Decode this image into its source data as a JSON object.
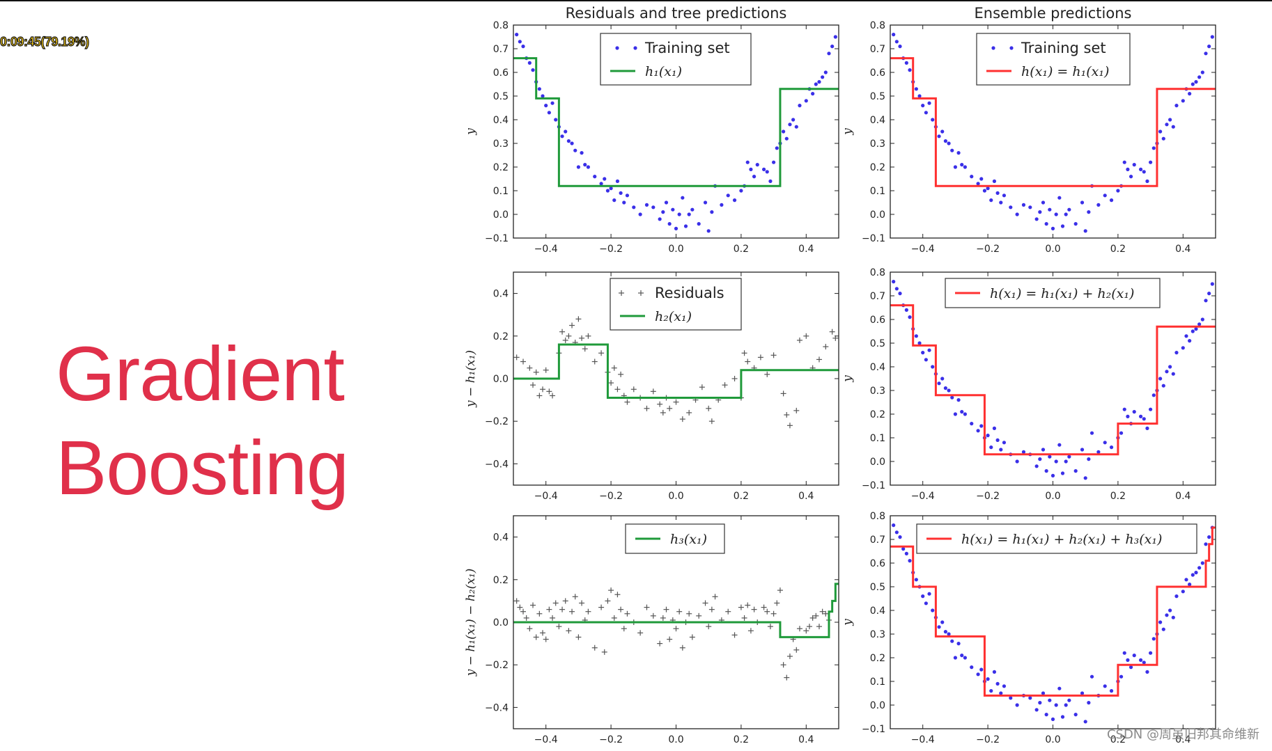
{
  "overlay": {
    "timer": "0:09:45(79.19%)"
  },
  "headline": {
    "line1": "Gradient",
    "line2": "Boosting"
  },
  "watermark": "CSDN @周虽旧邦其命维新",
  "colors": {
    "headline": "#e0304a",
    "points": "#3a2fe8",
    "residuals": "#555555",
    "tree": "#1f9a3a",
    "ensemble": "#ff3030"
  },
  "chart_data": [
    {
      "type": "scatter",
      "title": "Residuals and tree predictions",
      "ylabel": "y",
      "xlim": [
        -0.5,
        0.5
      ],
      "ylim": [
        -0.1,
        0.8
      ],
      "yticks": [
        "-0.1",
        "0.0",
        "0.1",
        "0.2",
        "0.3",
        "0.4",
        "0.5",
        "0.6",
        "0.7",
        "0.8"
      ],
      "xticks": [
        "-0.4",
        "-0.2",
        "0.0",
        "0.2",
        "0.4"
      ],
      "legend": {
        "placement": "top-center",
        "entries": [
          "Training set",
          "h₁(x₁)"
        ]
      },
      "points": "training_set",
      "step": {
        "name": "h₁(x₁)",
        "color": "green",
        "breaks": [
          -0.36,
          0.32
        ],
        "values": [
          0.66,
          0.49,
          0.12,
          0.53
        ],
        "extraBreaks": [
          -0.43
        ]
      }
    },
    {
      "type": "scatter",
      "title": "Ensemble predictions",
      "ylabel": "y",
      "xlim": [
        -0.5,
        0.5
      ],
      "ylim": [
        -0.1,
        0.8
      ],
      "yticks": [
        "-0.1",
        "0.0",
        "0.1",
        "0.2",
        "0.3",
        "0.4",
        "0.5",
        "0.6",
        "0.7",
        "0.8"
      ],
      "xticks": [
        "-0.4",
        "-0.2",
        "0.0",
        "0.2",
        "0.4"
      ],
      "legend": {
        "placement": "top-center",
        "entries": [
          "Training set",
          "h(x₁) = h₁(x₁)"
        ]
      },
      "points": "training_set",
      "step": {
        "name": "h(x₁) = h₁(x₁)",
        "color": "red",
        "edges": [
          -0.5,
          -0.43,
          -0.36,
          0.32,
          0.5
        ],
        "values": [
          0.66,
          0.49,
          0.12,
          0.53
        ]
      }
    },
    {
      "type": "scatter",
      "title": "",
      "ylabel": "y − h₁(x₁)",
      "xlim": [
        -0.5,
        0.5
      ],
      "ylim": [
        -0.5,
        0.5
      ],
      "yticks": [
        "-0.4",
        "-0.2",
        "0.0",
        "0.2",
        "0.4"
      ],
      "xticks": [
        "-0.4",
        "-0.2",
        "0.0",
        "0.2",
        "0.4"
      ],
      "legend": {
        "placement": "top-center",
        "entries": [
          "Residuals",
          "h₂(x₁)"
        ]
      },
      "points": "residuals_1",
      "step": {
        "name": "h₂(x₁)",
        "color": "green",
        "edges": [
          -0.5,
          -0.36,
          -0.21,
          0.2,
          0.5
        ],
        "values": [
          0.0,
          0.16,
          -0.09,
          0.04
        ]
      }
    },
    {
      "type": "scatter",
      "title": "",
      "ylabel": "y",
      "xlim": [
        -0.5,
        0.5
      ],
      "ylim": [
        -0.1,
        0.8
      ],
      "yticks": [
        "-0.1",
        "0.0",
        "0.1",
        "0.2",
        "0.3",
        "0.4",
        "0.5",
        "0.6",
        "0.7",
        "0.8"
      ],
      "xticks": [
        "-0.4",
        "-0.2",
        "0.0",
        "0.2",
        "0.4"
      ],
      "legend": {
        "placement": "top-center",
        "entries": [
          "h(x₁) = h₁(x₁) + h₂(x₁)"
        ]
      },
      "points": "training_set",
      "step": {
        "name": "h(x₁) = h₁(x₁) + h₂(x₁)",
        "color": "red",
        "edges": [
          -0.5,
          -0.43,
          -0.36,
          -0.21,
          0.2,
          0.32,
          0.5
        ],
        "values": [
          0.66,
          0.49,
          0.28,
          0.03,
          0.16,
          0.57
        ]
      }
    },
    {
      "type": "scatter",
      "title": "",
      "ylabel": "y − h₁(x₁) − h₂(x₁)",
      "xlim": [
        -0.5,
        0.5
      ],
      "ylim": [
        -0.5,
        0.5
      ],
      "yticks": [
        "-0.4",
        "-0.2",
        "0.0",
        "0.2",
        "0.4"
      ],
      "xticks": [
        "-0.4",
        "-0.2",
        "0.0",
        "0.2",
        "0.4"
      ],
      "legend": {
        "placement": "top-center",
        "entries": [
          "h₃(x₁)"
        ]
      },
      "points": "residuals_2",
      "step": {
        "name": "h₃(x₁)",
        "color": "green",
        "edges": [
          -0.5,
          0.32,
          0.47,
          0.48,
          0.49,
          0.5
        ],
        "values": [
          0.0,
          -0.07,
          0.05,
          0.1,
          0.18
        ]
      }
    },
    {
      "type": "scatter",
      "title": "",
      "ylabel": "y",
      "xlim": [
        -0.5,
        0.5
      ],
      "ylim": [
        -0.1,
        0.8
      ],
      "yticks": [
        "-0.1",
        "0.0",
        "0.1",
        "0.2",
        "0.3",
        "0.4",
        "0.5",
        "0.6",
        "0.7",
        "0.8"
      ],
      "xticks": [
        "-0.4",
        "-0.2",
        "0.0",
        "0.2",
        "0.4"
      ],
      "legend": {
        "placement": "top-left",
        "entries": [
          "h(x₁) = h₁(x₁) + h₂(x₁) + h₃(x₁)"
        ]
      },
      "points": "training_set",
      "step": {
        "name": "h(x₁) = h₁(x₁) + h₂(x₁) + h₃(x₁)",
        "color": "red",
        "edges": [
          -0.5,
          -0.43,
          -0.36,
          -0.21,
          0.2,
          0.32,
          0.47,
          0.48,
          0.49,
          0.5
        ],
        "values": [
          0.67,
          0.5,
          0.29,
          0.04,
          0.17,
          0.5,
          0.61,
          0.68,
          0.75
        ]
      }
    }
  ],
  "series_data": {
    "training_set": {
      "x": [
        -0.49,
        -0.48,
        -0.47,
        -0.46,
        -0.45,
        -0.44,
        -0.43,
        -0.42,
        -0.41,
        -0.4,
        -0.39,
        -0.38,
        -0.37,
        -0.36,
        -0.35,
        -0.34,
        -0.33,
        -0.32,
        -0.31,
        -0.3,
        -0.29,
        -0.28,
        -0.27,
        -0.25,
        -0.23,
        -0.22,
        -0.21,
        -0.2,
        -0.19,
        -0.18,
        -0.17,
        -0.16,
        -0.15,
        -0.13,
        -0.11,
        -0.09,
        -0.07,
        -0.05,
        -0.04,
        -0.03,
        -0.02,
        -0.01,
        0.0,
        0.01,
        0.02,
        0.03,
        0.04,
        0.05,
        0.07,
        0.09,
        0.1,
        0.11,
        0.12,
        0.14,
        0.16,
        0.18,
        0.2,
        0.21,
        0.22,
        0.23,
        0.24,
        0.25,
        0.27,
        0.28,
        0.29,
        0.3,
        0.31,
        0.32,
        0.33,
        0.34,
        0.35,
        0.36,
        0.37,
        0.38,
        0.4,
        0.41,
        0.42,
        0.43,
        0.44,
        0.45,
        0.46,
        0.47,
        0.48,
        0.49
      ],
      "y": [
        0.76,
        0.73,
        0.71,
        0.66,
        0.64,
        0.61,
        0.56,
        0.53,
        0.5,
        0.46,
        0.43,
        0.47,
        0.4,
        0.37,
        0.33,
        0.35,
        0.31,
        0.3,
        0.27,
        0.2,
        0.26,
        0.21,
        0.2,
        0.16,
        0.13,
        0.15,
        0.1,
        0.11,
        0.06,
        0.14,
        0.09,
        0.05,
        0.08,
        0.03,
        0.0,
        0.04,
        0.03,
        -0.02,
        0.01,
        0.05,
        -0.04,
        0.02,
        -0.06,
        0.0,
        0.07,
        -0.05,
        0.0,
        0.02,
        -0.04,
        0.05,
        -0.07,
        0.01,
        0.12,
        0.04,
        0.08,
        0.06,
        0.1,
        0.12,
        0.22,
        0.19,
        0.16,
        0.21,
        0.19,
        0.18,
        0.14,
        0.22,
        0.28,
        0.3,
        0.35,
        0.32,
        0.38,
        0.4,
        0.37,
        0.46,
        0.48,
        0.53,
        0.51,
        0.55,
        0.56,
        0.58,
        0.6,
        0.68,
        0.71,
        0.75
      ]
    },
    "residuals_1": {
      "x": [
        -0.49,
        -0.47,
        -0.45,
        -0.44,
        -0.43,
        -0.42,
        -0.41,
        -0.4,
        -0.39,
        -0.38,
        -0.36,
        -0.35,
        -0.34,
        -0.33,
        -0.32,
        -0.31,
        -0.3,
        -0.29,
        -0.28,
        -0.27,
        -0.25,
        -0.23,
        -0.21,
        -0.2,
        -0.19,
        -0.18,
        -0.17,
        -0.16,
        -0.15,
        -0.13,
        -0.11,
        -0.09,
        -0.07,
        -0.05,
        -0.04,
        -0.03,
        -0.02,
        0.0,
        0.02,
        0.04,
        0.06,
        0.08,
        0.1,
        0.11,
        0.13,
        0.15,
        0.18,
        0.2,
        0.21,
        0.22,
        0.24,
        0.26,
        0.28,
        0.3,
        0.33,
        0.34,
        0.35,
        0.37,
        0.38,
        0.4,
        0.42,
        0.44,
        0.46,
        0.48,
        0.49
      ],
      "y": [
        0.1,
        0.08,
        0.05,
        -0.03,
        0.03,
        -0.08,
        -0.05,
        0.04,
        -0.06,
        -0.08,
        0.12,
        0.22,
        0.18,
        0.2,
        0.25,
        0.17,
        0.28,
        0.19,
        0.14,
        0.2,
        0.08,
        0.12,
        0.03,
        -0.02,
        0.05,
        -0.05,
        0.02,
        -0.08,
        -0.11,
        -0.05,
        -0.09,
        -0.14,
        -0.06,
        -0.12,
        -0.16,
        -0.09,
        -0.14,
        -0.11,
        -0.19,
        -0.16,
        -0.1,
        -0.04,
        -0.14,
        -0.2,
        -0.1,
        -0.03,
        0.0,
        -0.09,
        0.12,
        0.08,
        0.05,
        0.1,
        0.02,
        0.11,
        -0.07,
        -0.17,
        -0.22,
        -0.15,
        0.18,
        0.2,
        0.05,
        0.09,
        0.15,
        0.22,
        0.19
      ]
    },
    "residuals_2": {
      "x": [
        -0.49,
        -0.48,
        -0.47,
        -0.46,
        -0.45,
        -0.44,
        -0.43,
        -0.42,
        -0.41,
        -0.4,
        -0.39,
        -0.38,
        -0.37,
        -0.36,
        -0.35,
        -0.34,
        -0.33,
        -0.32,
        -0.31,
        -0.3,
        -0.29,
        -0.28,
        -0.27,
        -0.25,
        -0.23,
        -0.22,
        -0.21,
        -0.2,
        -0.19,
        -0.18,
        -0.17,
        -0.16,
        -0.15,
        -0.13,
        -0.11,
        -0.09,
        -0.07,
        -0.05,
        -0.04,
        -0.03,
        -0.02,
        -0.01,
        0.0,
        0.01,
        0.02,
        0.03,
        0.04,
        0.05,
        0.07,
        0.09,
        0.1,
        0.11,
        0.12,
        0.14,
        0.16,
        0.18,
        0.2,
        0.21,
        0.22,
        0.23,
        0.24,
        0.25,
        0.27,
        0.28,
        0.29,
        0.3,
        0.31,
        0.32,
        0.33,
        0.34,
        0.35,
        0.36,
        0.37,
        0.38,
        0.4,
        0.41,
        0.42,
        0.43,
        0.44,
        0.45,
        0.46,
        0.47
      ],
      "y": [
        0.1,
        0.07,
        0.05,
        0.02,
        -0.03,
        0.08,
        -0.07,
        0.04,
        -0.05,
        -0.08,
        0.06,
        0.02,
        0.09,
        -0.02,
        0.06,
        0.1,
        -0.04,
        0.05,
        0.12,
        -0.07,
        0.09,
        0.01,
        0.05,
        -0.12,
        0.07,
        -0.14,
        0.1,
        0.15,
        0.02,
        0.13,
        0.06,
        -0.03,
        0.04,
        0.0,
        -0.05,
        0.07,
        0.03,
        -0.1,
        0.02,
        0.06,
        -0.08,
        0.01,
        -0.03,
        0.05,
        -0.12,
        0.0,
        0.04,
        -0.07,
        0.03,
        0.09,
        -0.02,
        0.06,
        0.12,
        0.01,
        0.05,
        -0.06,
        0.07,
        0.02,
        0.08,
        -0.04,
        0.06,
        0.0,
        0.07,
        0.05,
        -0.02,
        0.04,
        0.09,
        0.15,
        -0.2,
        -0.26,
        -0.16,
        -0.08,
        -0.13,
        -0.03,
        -0.04,
        -0.02,
        0.02,
        0.03,
        -0.02,
        0.05,
        0.04,
        0.01
      ]
    }
  }
}
